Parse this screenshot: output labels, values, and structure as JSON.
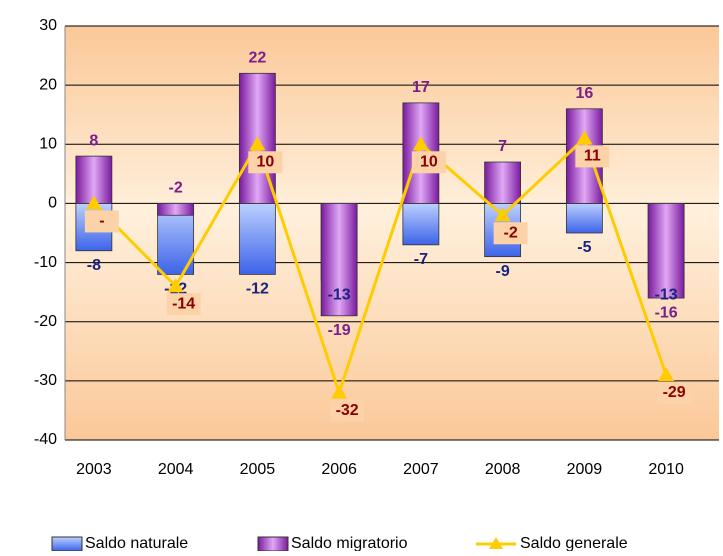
{
  "chart_data": {
    "type": "bar_line",
    "categories": [
      "2003",
      "2004",
      "2005",
      "2006",
      "2007",
      "2008",
      "2009",
      "2010"
    ],
    "series": [
      {
        "name": "Saldo naturale",
        "type": "bar",
        "color": "#5b7bf0",
        "label_color": "#1a237e",
        "values": [
          -8,
          -12,
          -12,
          -13,
          -7,
          -9,
          -5,
          -13
        ]
      },
      {
        "name": "Saldo migratorio",
        "type": "bar",
        "color": "#9933cc",
        "label_color": "#7b1f8a",
        "values": [
          8,
          -2,
          22,
          -19,
          17,
          7,
          16,
          -16
        ]
      },
      {
        "name": "Saldo generale",
        "type": "line",
        "color": "#ffcc00",
        "label_color": "#8b0000",
        "values": [
          0,
          -14,
          10,
          -32,
          10,
          -2,
          11,
          -29
        ],
        "value_labels": [
          "-",
          "-14",
          "10",
          "-32",
          "10",
          "-2",
          "11",
          "-29"
        ]
      }
    ],
    "ylim": [
      -40,
      30
    ],
    "yticks": [
      -40,
      -30,
      -20,
      -10,
      0,
      10,
      20,
      30
    ],
    "grid": true
  }
}
